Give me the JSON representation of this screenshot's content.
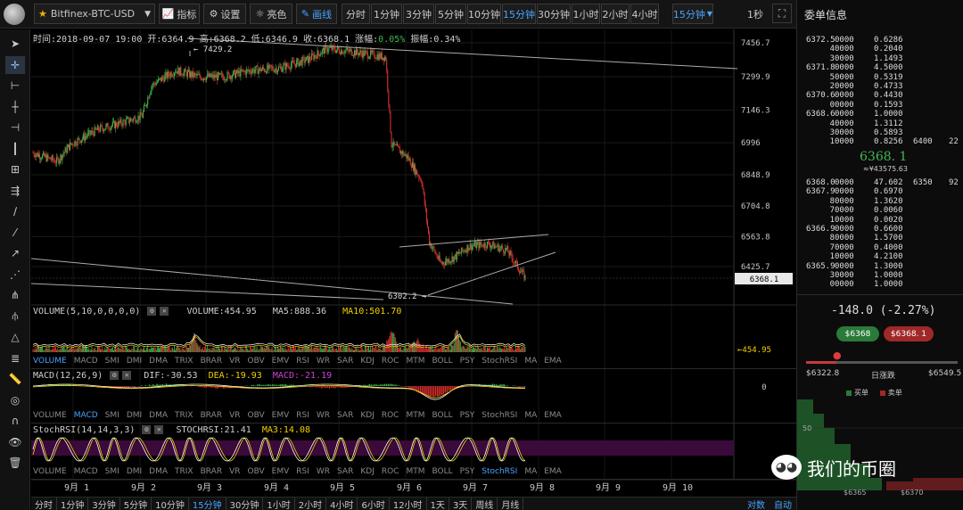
{
  "toolbar": {
    "symbol": "Bitfinex-BTC-USD",
    "buttons": [
      {
        "key": "indicators",
        "label": "指标",
        "icon": "line-chart-icon"
      },
      {
        "key": "settings",
        "label": "设置",
        "icon": "gear-icon"
      },
      {
        "key": "theme",
        "label": "亮色",
        "icon": "sun-icon"
      },
      {
        "key": "draw",
        "label": "画线",
        "icon": "pencil-icon"
      }
    ],
    "periods": [
      "分时",
      "1分钟",
      "3分钟",
      "5分钟",
      "10分钟",
      "15分钟",
      "30分钟",
      "1小时",
      "2小时",
      "4小时"
    ],
    "active_period": "15分钟",
    "period_dropdown": "15分钟",
    "timer": "1秒"
  },
  "left_tools": [
    "cursor-icon",
    "crosshair-icon",
    "horizontal-segment-icon",
    "horizontal-line-icon",
    "horizontal-ray-icon",
    "vertical-line-icon",
    "price-line-icon",
    "parallel-channel-icon",
    "trend-line-icon",
    "ray-icon",
    "arrow-line-icon",
    "extended-line-icon",
    "fan-icon",
    "pitchfork-icon",
    "triangle-icon",
    "fibonacci-icon",
    "ruler-icon",
    "spiral-icon",
    "magnet-icon",
    "eye-icon",
    "trash-icon"
  ],
  "info_bar": {
    "time": "时间:2018-09-07 19:00",
    "open": "开:6364.9",
    "high": "高:6368.2",
    "low": "低:6346.9",
    "close": "收:6368.1",
    "change_label": "涨幅:",
    "change_value": "0.05%",
    "amplitude": "振幅:0.34%"
  },
  "price_axis": [
    "7456.7",
    "7299.9",
    "7146.3",
    "6996",
    "6848.9",
    "6704.8",
    "6563.8",
    "6425.7"
  ],
  "current_price_tag": "6368.1",
  "annotations": {
    "high": "7429.2",
    "low": "6302.2"
  },
  "volume": {
    "title": "VOLUME(5,10,0,0,0,0)",
    "value": "VOLUME:454.95",
    "ma5": "MA5:888.36",
    "ma10": "MA10:501.70",
    "axis_tag": "454.95"
  },
  "macd": {
    "title": "MACD(12,26,9)",
    "dif": "DIF:-30.53",
    "dea": "DEA:-19.93",
    "macd": "MACD:-21.19",
    "axis_tag": "0"
  },
  "stochrsi": {
    "title": "StochRSI(14,14,3,3)",
    "value": "STOCHRSI:21.41",
    "ma3": "MA3:14.08"
  },
  "indicator_tabs": [
    "VOLUME",
    "MACD",
    "SMI",
    "DMI",
    "DMA",
    "TRIX",
    "BRAR",
    "VR",
    "OBV",
    "EMV",
    "RSI",
    "WR",
    "SAR",
    "KDJ",
    "ROC",
    "MTM",
    "BOLL",
    "PSY",
    "StochRSI",
    "MA",
    "EMA"
  ],
  "date_axis": [
    "9月 1",
    "9月 2",
    "9月 3",
    "9月 4",
    "9月 5",
    "9月 6",
    "9月 7",
    "9月 8",
    "9月 9",
    "9月 10"
  ],
  "bottom_periods": [
    "分时",
    "1分钟",
    "3分钟",
    "5分钟",
    "10分钟",
    "15分钟",
    "30分钟",
    "1小时",
    "2小时",
    "4小时",
    "6小时",
    "12小时",
    "1天",
    "3天",
    "周线",
    "月线"
  ],
  "bottom_active": "15分钟",
  "bottom_right": [
    "对数",
    "自动"
  ],
  "right_panel": {
    "title": "委单信息",
    "asks": [
      {
        "p": "6372.5",
        "v": "0000",
        "s": "0.6286"
      },
      {
        "p": "4",
        "v": "0000",
        "s": "0.2040"
      },
      {
        "p": "3",
        "v": "0000",
        "s": "1.1493"
      },
      {
        "p": "6371.8",
        "v": "0000",
        "s": "4.5000"
      },
      {
        "p": "5",
        "v": "0000",
        "s": "0.5319"
      },
      {
        "p": "2",
        "v": "0000",
        "s": "0.4733"
      },
      {
        "p": "6370.6",
        "v": "0000",
        "s": "0.4430"
      },
      {
        "p": "0",
        "v": "0000",
        "s": "0.1593"
      },
      {
        "p": "6368.6",
        "v": "0000",
        "s": "1.0000"
      },
      {
        "p": "4",
        "v": "0000",
        "s": "1.3112"
      },
      {
        "p": "3",
        "v": "0000",
        "s": "0.5893"
      },
      {
        "p": "1",
        "v": "0000",
        "s": "0.8256",
        "bp": "6400",
        "bs": "22"
      }
    ],
    "last_price": "6368. 1",
    "last_sub": "≈¥43575.63",
    "bids": [
      {
        "p": "6368.0",
        "v": "0000",
        "s": "47.602",
        "bp": "6350",
        "bs": "92"
      },
      {
        "p": "6367.9",
        "v": "0000",
        "s": "0.6970"
      },
      {
        "p": "8",
        "v": "0000",
        "s": "1.3620"
      },
      {
        "p": "7",
        "v": "0000",
        "s": "0.0060"
      },
      {
        "p": "1",
        "v": "0000",
        "s": "0.0020"
      },
      {
        "p": "6366.9",
        "v": "0000",
        "s": "0.6600"
      },
      {
        "p": "8",
        "v": "0000",
        "s": "1.5700"
      },
      {
        "p": "7",
        "v": "0000",
        "s": "0.4000"
      },
      {
        "p": "1",
        "v": "0000",
        "s": "4.2100"
      },
      {
        "p": "6365.9",
        "v": "0000",
        "s": "1.3000"
      },
      {
        "p": "3",
        "v": "0000",
        "s": "1.0000"
      },
      {
        "p": "0",
        "v": "0000",
        "s": "1.0000"
      }
    ],
    "change": "-148.0 (-2.27%)",
    "buy_price": "$6368",
    "sell_price": "$6368. 1",
    "range_low": "$6322.8",
    "range_label": "日涨跌",
    "range_high": "$6549.5",
    "range_fraction": 0.2,
    "legend_buy": "买单",
    "legend_sell": "卖单",
    "depth_axis_y": "50",
    "depth_axis_x": [
      "$6365",
      "$6370"
    ]
  },
  "watermark": "我们的币圈",
  "colors": {
    "up": "#3fb950",
    "down": "#e0312f",
    "accent": "#4aa3ff",
    "ma5": "#ffffff",
    "ma10": "#f0d000"
  }
}
